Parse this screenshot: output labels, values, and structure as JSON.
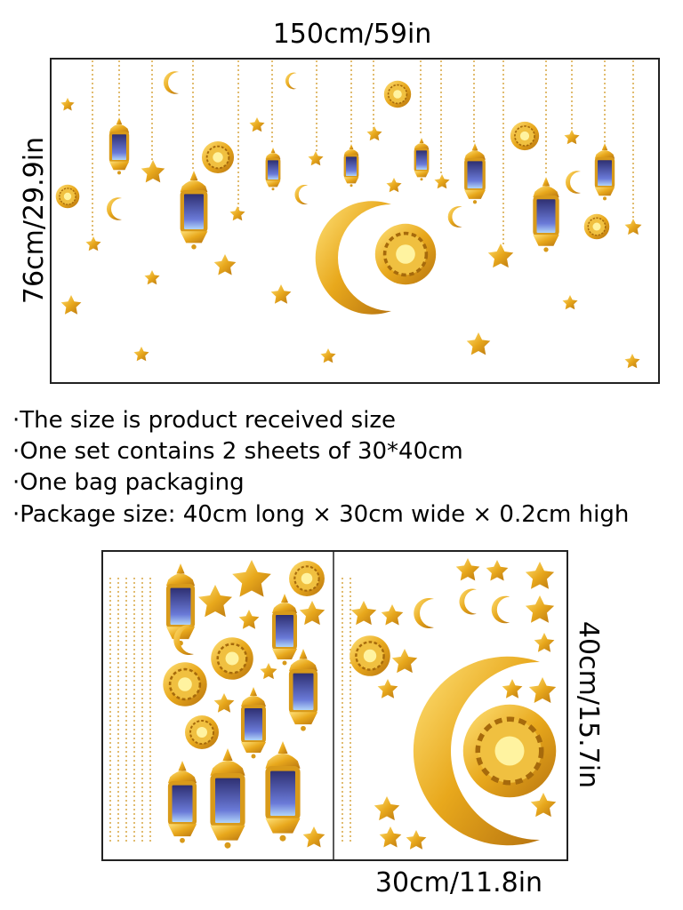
{
  "top_panel": {
    "width_label": "150cm/59in",
    "height_label": "76cm/29.9in"
  },
  "notes": [
    "·The size is product received size",
    "·One set contains 2 sheets of 30*40cm",
    "·One bag packaging",
    "·Package size: 40cm long × 30cm wide × 0.2cm high"
  ],
  "sheets": {
    "height_label": "40cm/15.7in",
    "width_label": "30cm/11.8in"
  }
}
